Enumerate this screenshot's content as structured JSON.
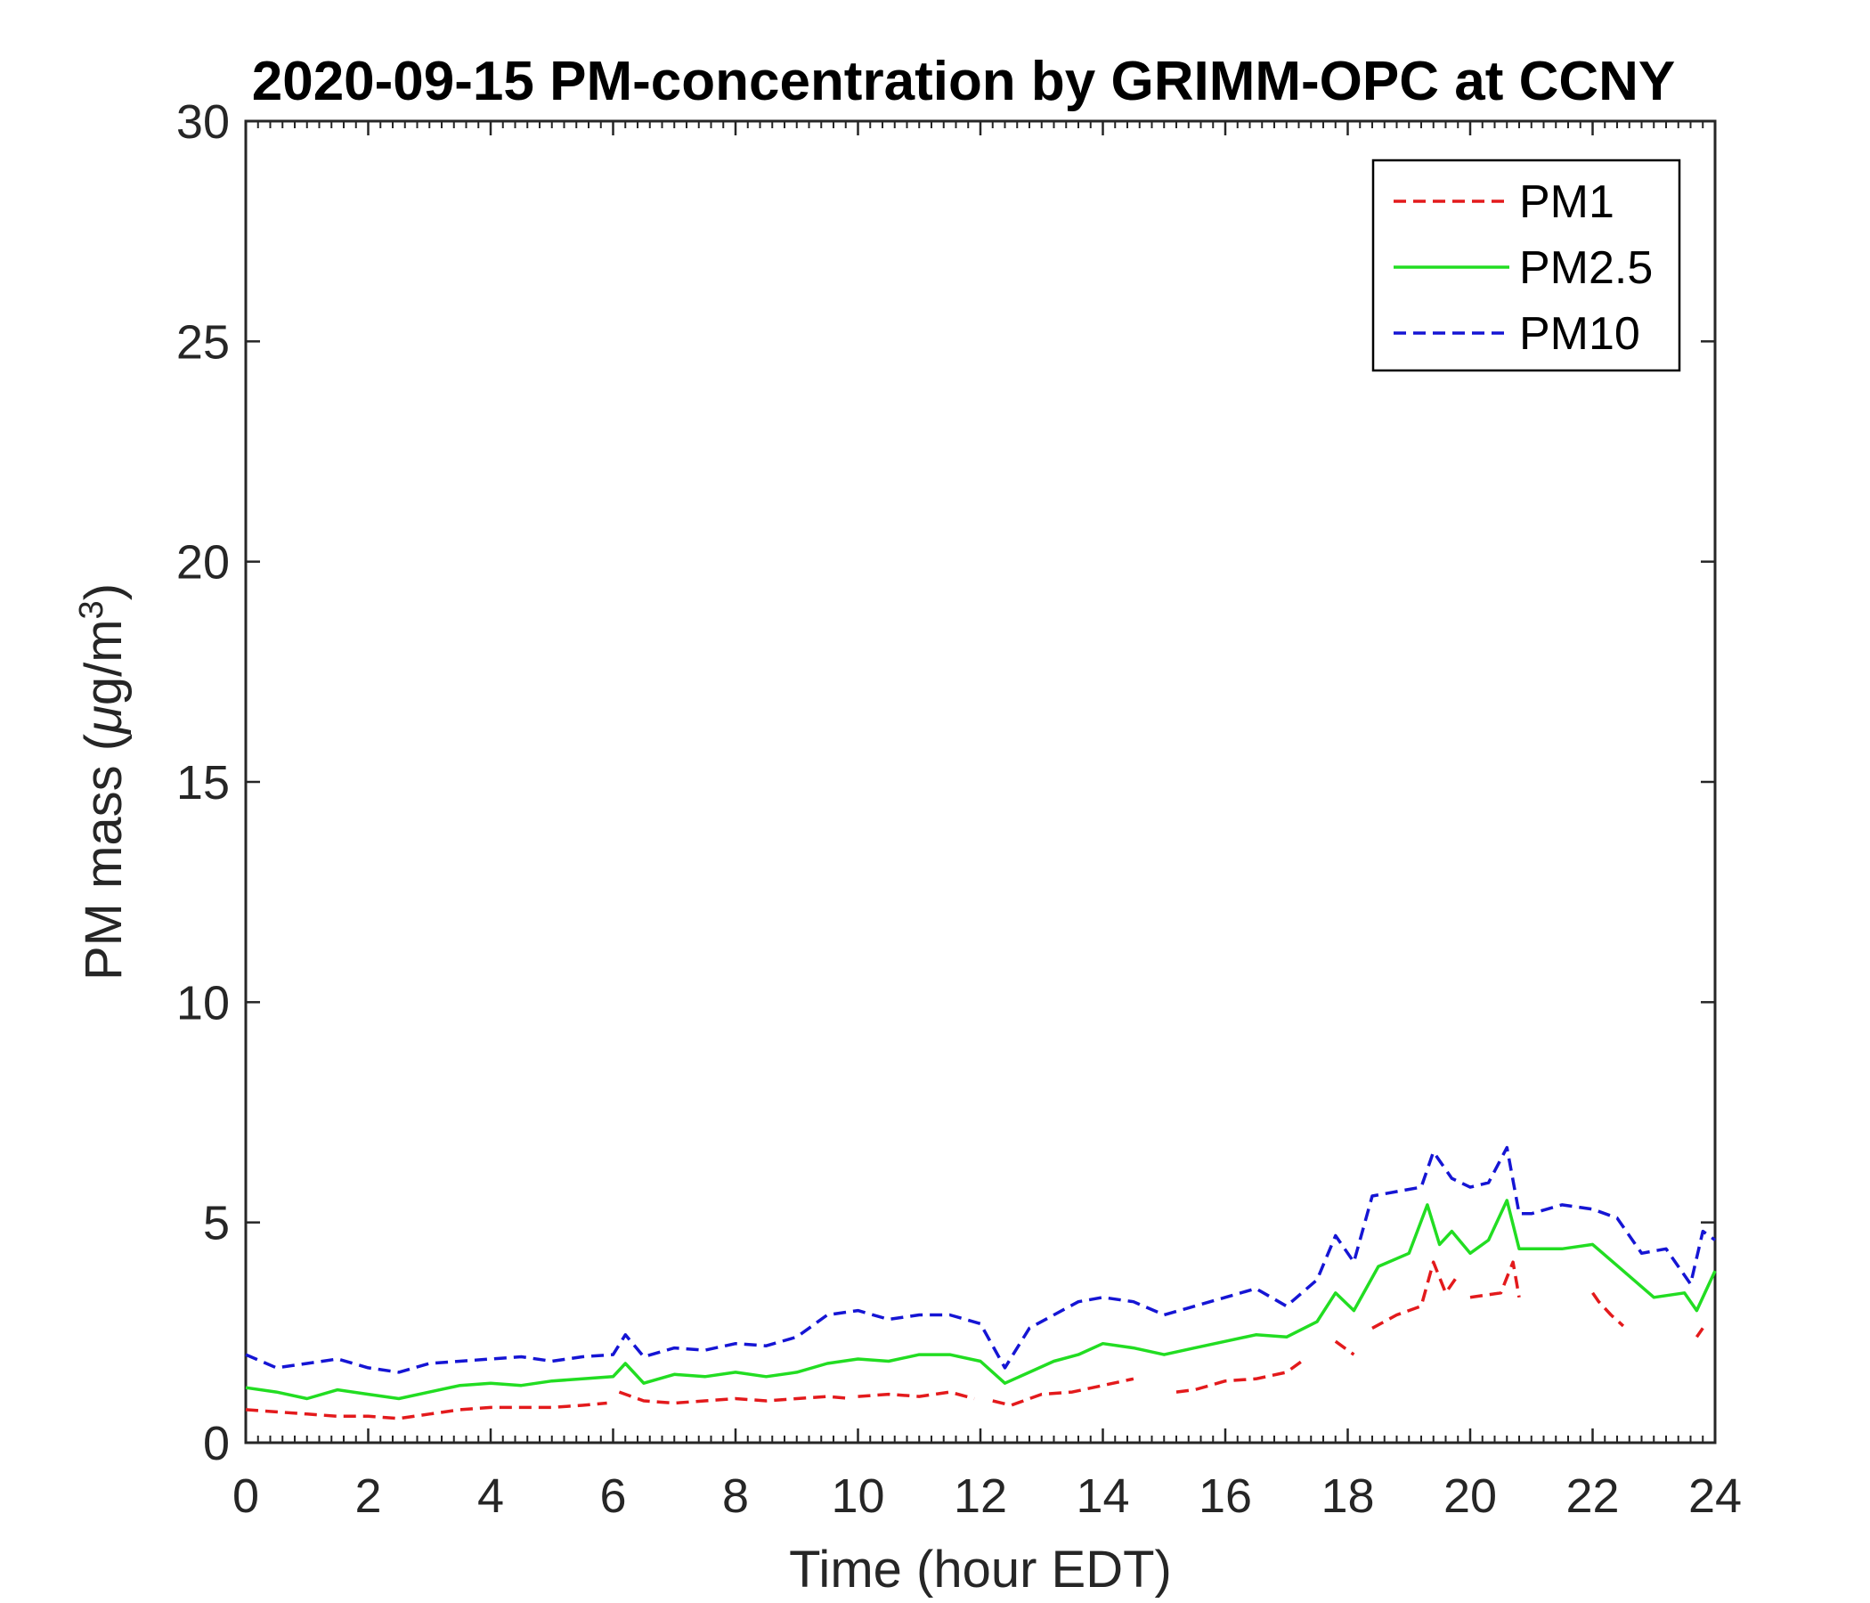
{
  "chart_data": {
    "type": "line",
    "title": "2020-09-15 PM-concentration by GRIMM-OPC at CCNY",
    "xlabel": "Time (hour EDT)",
    "ylabel_main": "PM mass (",
    "ylabel_mu": "μ",
    "ylabel_unit": "g/m",
    "ylabel_exp": "3",
    "ylabel_close": ")",
    "xlim": [
      0,
      24
    ],
    "ylim": [
      0,
      30
    ],
    "xticks": [
      0,
      2,
      4,
      6,
      8,
      10,
      12,
      14,
      16,
      18,
      20,
      22,
      24
    ],
    "yticks": [
      0,
      5,
      10,
      15,
      20,
      25,
      30
    ],
    "legend_position": "top-right",
    "grid": false,
    "series": [
      {
        "name": "PM1",
        "color": "#e31a1c",
        "dash": "dashed",
        "x": [
          0,
          0.5,
          1,
          1.5,
          2,
          2.5,
          3,
          3.5,
          4,
          4.5,
          5,
          5.5,
          5.9,
          null,
          6.1,
          6.5,
          7,
          7.5,
          8,
          8.5,
          9,
          9.5,
          9.9,
          null,
          10,
          10.5,
          11,
          11.5,
          11.9,
          null,
          12.2,
          12.5,
          13,
          13.5,
          14,
          14.5,
          null,
          15.2,
          15.5,
          16,
          16.5,
          17,
          17.3,
          null,
          17.8,
          18.1,
          null,
          18.4,
          18.8,
          19.2,
          19.4,
          19.6,
          19.8,
          null,
          20.0,
          20.5,
          20.7,
          20.8,
          null,
          22.0,
          22.1,
          22.3,
          22.5,
          null,
          23.7,
          23.8
        ],
        "y": [
          0.75,
          0.7,
          0.65,
          0.6,
          0.6,
          0.55,
          0.65,
          0.75,
          0.8,
          0.8,
          0.8,
          0.85,
          0.9,
          null,
          1.15,
          0.95,
          0.9,
          0.95,
          1.0,
          0.95,
          1.0,
          1.05,
          1.0,
          null,
          1.05,
          1.1,
          1.05,
          1.15,
          1.0,
          null,
          0.95,
          0.85,
          1.1,
          1.15,
          1.3,
          1.45,
          null,
          1.15,
          1.2,
          1.4,
          1.45,
          1.6,
          1.9,
          null,
          2.3,
          2.0,
          null,
          2.6,
          2.9,
          3.1,
          4.1,
          3.4,
          3.8,
          null,
          3.3,
          3.4,
          4.1,
          3.3,
          null,
          3.4,
          3.2,
          2.9,
          2.65,
          null,
          2.4,
          2.6
        ]
      },
      {
        "name": "PM2.5",
        "color": "#22dd22",
        "dash": "solid",
        "x": [
          0,
          0.5,
          1,
          1.5,
          2,
          2.5,
          3,
          3.5,
          4,
          4.5,
          5,
          5.5,
          6,
          6.2,
          6.5,
          7,
          7.5,
          8,
          8.5,
          9,
          9.5,
          10,
          10.5,
          11,
          11.5,
          12,
          12.4,
          12.8,
          13.2,
          13.6,
          14,
          14.5,
          15,
          15.5,
          16,
          16.5,
          17,
          17.5,
          17.8,
          18.1,
          18.5,
          19,
          19.3,
          19.5,
          19.7,
          20,
          20.3,
          20.6,
          20.8,
          21,
          21.5,
          22,
          22.5,
          23,
          23.5,
          23.7,
          24
        ],
        "y": [
          1.25,
          1.15,
          1.0,
          1.2,
          1.1,
          1.0,
          1.15,
          1.3,
          1.35,
          1.3,
          1.4,
          1.45,
          1.5,
          1.8,
          1.35,
          1.55,
          1.5,
          1.6,
          1.5,
          1.6,
          1.8,
          1.9,
          1.85,
          2.0,
          2.0,
          1.85,
          1.35,
          1.6,
          1.85,
          2.0,
          2.25,
          2.15,
          2.0,
          2.15,
          2.3,
          2.45,
          2.4,
          2.75,
          3.4,
          3.0,
          4.0,
          4.3,
          5.4,
          4.5,
          4.8,
          4.3,
          4.6,
          5.5,
          4.4,
          4.4,
          4.4,
          4.5,
          3.9,
          3.3,
          3.4,
          3.0,
          3.9
        ]
      },
      {
        "name": "PM10",
        "color": "#1515d4",
        "dash": "dashed",
        "x": [
          0,
          0.5,
          1,
          1.5,
          2,
          2.5,
          3,
          3.5,
          4,
          4.5,
          5,
          5.5,
          6,
          6.2,
          6.5,
          7,
          7.5,
          8,
          8.5,
          9,
          9.5,
          10,
          10.5,
          11,
          11.5,
          12,
          12.4,
          12.8,
          13.2,
          13.6,
          14,
          14.5,
          15,
          15.5,
          16,
          16.5,
          17,
          17.5,
          17.8,
          18.1,
          18.4,
          18.8,
          19.2,
          19.4,
          19.7,
          20,
          20.3,
          20.6,
          20.8,
          21,
          21.5,
          22,
          22.4,
          22.8,
          23.2,
          23.6,
          23.8,
          24
        ],
        "y": [
          2.0,
          1.7,
          1.8,
          1.9,
          1.7,
          1.6,
          1.8,
          1.85,
          1.9,
          1.95,
          1.85,
          1.95,
          2.0,
          2.45,
          1.95,
          2.15,
          2.1,
          2.25,
          2.2,
          2.4,
          2.9,
          3.0,
          2.8,
          2.9,
          2.9,
          2.7,
          1.7,
          2.6,
          2.9,
          3.2,
          3.3,
          3.2,
          2.9,
          3.1,
          3.3,
          3.5,
          3.1,
          3.7,
          4.7,
          4.1,
          5.6,
          5.7,
          5.8,
          6.6,
          6.0,
          5.8,
          5.9,
          6.7,
          5.2,
          5.2,
          5.4,
          5.3,
          5.1,
          4.3,
          4.4,
          3.6,
          4.8,
          4.6
        ]
      }
    ]
  }
}
